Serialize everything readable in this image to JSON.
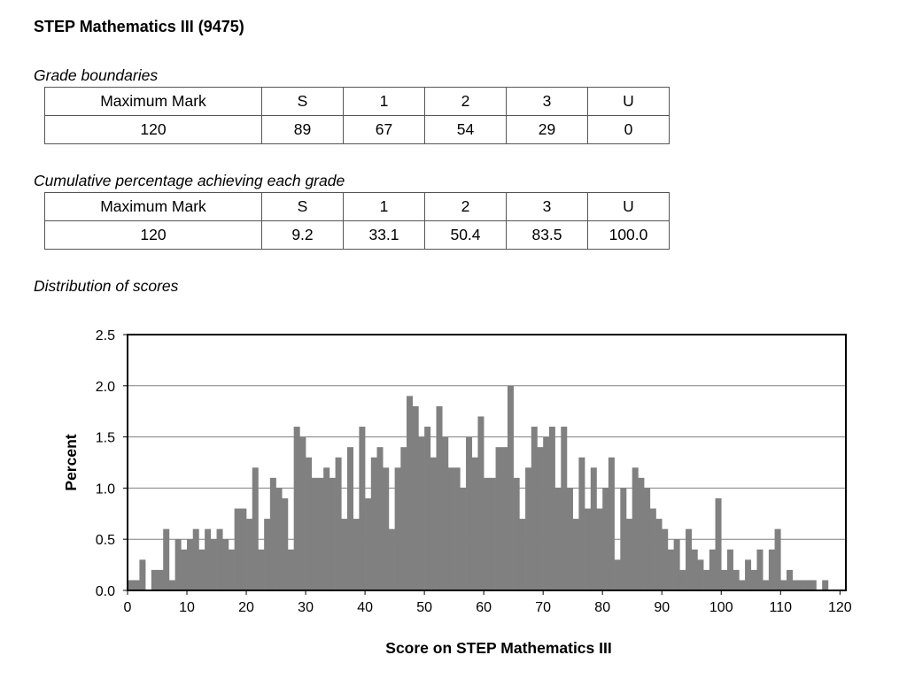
{
  "title": "STEP Mathematics III (9475)",
  "grade_boundaries": {
    "heading": "Grade boundaries",
    "header": [
      "Maximum Mark",
      "S",
      "1",
      "2",
      "3",
      "U"
    ],
    "row": [
      "120",
      "89",
      "67",
      "54",
      "29",
      "0"
    ]
  },
  "cumulative": {
    "heading": "Cumulative percentage achieving each grade",
    "header": [
      "Maximum Mark",
      "S",
      "1",
      "2",
      "3",
      "U"
    ],
    "row": [
      "120",
      "9.2",
      "33.1",
      "50.4",
      "83.5",
      "100.0"
    ]
  },
  "distribution_heading": "Distribution of scores",
  "colors": {
    "bar": "#808080",
    "grid": "#808080",
    "frame": "#000000"
  },
  "chart_data": {
    "type": "bar",
    "title": "",
    "xlabel": "Score on STEP Mathematics III",
    "ylabel": "Percent",
    "xlim": [
      0,
      121
    ],
    "ylim": [
      0,
      2.5
    ],
    "grid": true,
    "xticks": [
      "0",
      "10",
      "20",
      "30",
      "40",
      "50",
      "60",
      "70",
      "80",
      "90",
      "100",
      "110",
      "120"
    ],
    "yticks": [
      "0.0",
      "0.5",
      "1.0",
      "1.5",
      "2.0",
      "2.5"
    ],
    "x": [
      0,
      1,
      2,
      3,
      4,
      5,
      6,
      7,
      8,
      9,
      10,
      11,
      12,
      13,
      14,
      15,
      16,
      17,
      18,
      19,
      20,
      21,
      22,
      23,
      24,
      25,
      26,
      27,
      28,
      29,
      30,
      31,
      32,
      33,
      34,
      35,
      36,
      37,
      38,
      39,
      40,
      41,
      42,
      43,
      44,
      45,
      46,
      47,
      48,
      49,
      50,
      51,
      52,
      53,
      54,
      55,
      56,
      57,
      58,
      59,
      60,
      61,
      62,
      63,
      64,
      65,
      66,
      67,
      68,
      69,
      70,
      71,
      72,
      73,
      74,
      75,
      76,
      77,
      78,
      79,
      80,
      81,
      82,
      83,
      84,
      85,
      86,
      87,
      88,
      89,
      90,
      91,
      92,
      93,
      94,
      95,
      96,
      97,
      98,
      99,
      100,
      101,
      102,
      103,
      104,
      105,
      106,
      107,
      108,
      109,
      110,
      111,
      112,
      113,
      114,
      115,
      116,
      117,
      118,
      119,
      120
    ],
    "values": [
      0.1,
      0.1,
      0.3,
      0.0,
      0.2,
      0.2,
      0.6,
      0.1,
      0.5,
      0.4,
      0.5,
      0.6,
      0.4,
      0.6,
      0.5,
      0.6,
      0.5,
      0.4,
      0.8,
      0.8,
      0.7,
      1.2,
      0.4,
      0.7,
      1.1,
      1.0,
      0.9,
      0.4,
      1.6,
      1.5,
      1.3,
      1.1,
      1.1,
      1.2,
      1.1,
      1.3,
      0.7,
      1.4,
      0.7,
      1.6,
      0.9,
      1.3,
      1.4,
      1.2,
      0.6,
      1.2,
      1.4,
      1.9,
      1.8,
      1.5,
      1.6,
      1.3,
      1.8,
      1.5,
      1.2,
      1.2,
      1.0,
      1.5,
      1.3,
      1.7,
      1.1,
      1.1,
      1.4,
      1.4,
      2.0,
      1.1,
      0.7,
      1.2,
      1.6,
      1.4,
      1.5,
      1.6,
      1.0,
      1.6,
      1.0,
      0.7,
      1.3,
      0.8,
      1.2,
      0.8,
      1.0,
      1.3,
      0.3,
      1.0,
      0.7,
      1.2,
      1.1,
      1.0,
      0.8,
      0.7,
      0.6,
      0.4,
      0.5,
      0.2,
      0.6,
      0.4,
      0.3,
      0.2,
      0.4,
      0.9,
      0.2,
      0.4,
      0.2,
      0.1,
      0.3,
      0.2,
      0.4,
      0.1,
      0.4,
      0.6,
      0.1,
      0.2,
      0.1,
      0.1,
      0.1,
      0.1,
      0.0,
      0.1,
      0.0,
      0.0,
      0.0
    ]
  }
}
